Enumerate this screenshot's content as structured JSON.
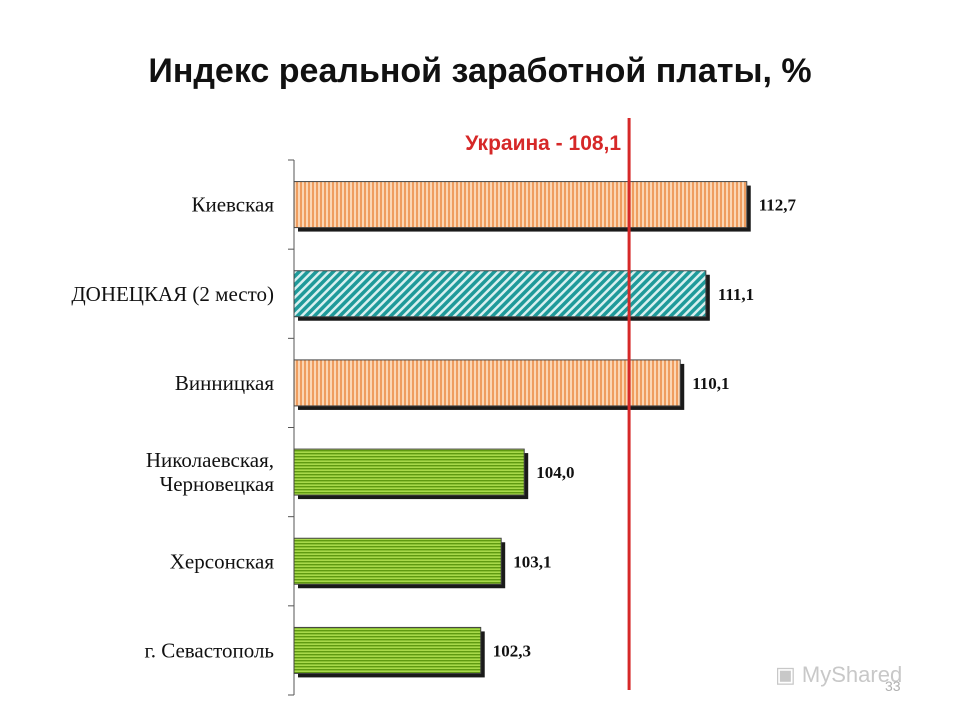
{
  "chart_data": {
    "type": "bar",
    "orientation": "horizontal",
    "title": "Индекс реальной заработной платы, %",
    "categories": [
      "Киевская",
      "ДОНЕЦКАЯ (2 место)",
      "Винницкая",
      [
        "Николаевская,",
        "Черновецкая"
      ],
      "Херсонская",
      "г. Севастополь"
    ],
    "values": [
      112.7,
      111.1,
      110.1,
      104.0,
      103.1,
      102.3
    ],
    "value_labels": [
      "112,7",
      "111,1",
      "110,1",
      "104,0",
      "103,1",
      "102,3"
    ],
    "bar_styles": [
      "orange-vertical-stripes",
      "teal-diagonal-hatch",
      "orange-vertical-stripes",
      "green-horizontal-stripes",
      "green-horizontal-stripes",
      "green-horizontal-stripes"
    ],
    "reference_line": {
      "value": 108.1,
      "label": "Украина - 108,1",
      "color": "#d62828"
    },
    "xlim": [
      0,
      114
    ],
    "grid": false,
    "legend": "none"
  },
  "colors": {
    "orange": "#f4a46c",
    "teal": "#2aa6a6",
    "green": "#7fb819",
    "reference": "#d62828"
  },
  "footer": {
    "watermark": "MyShared",
    "page_number": "33"
  }
}
